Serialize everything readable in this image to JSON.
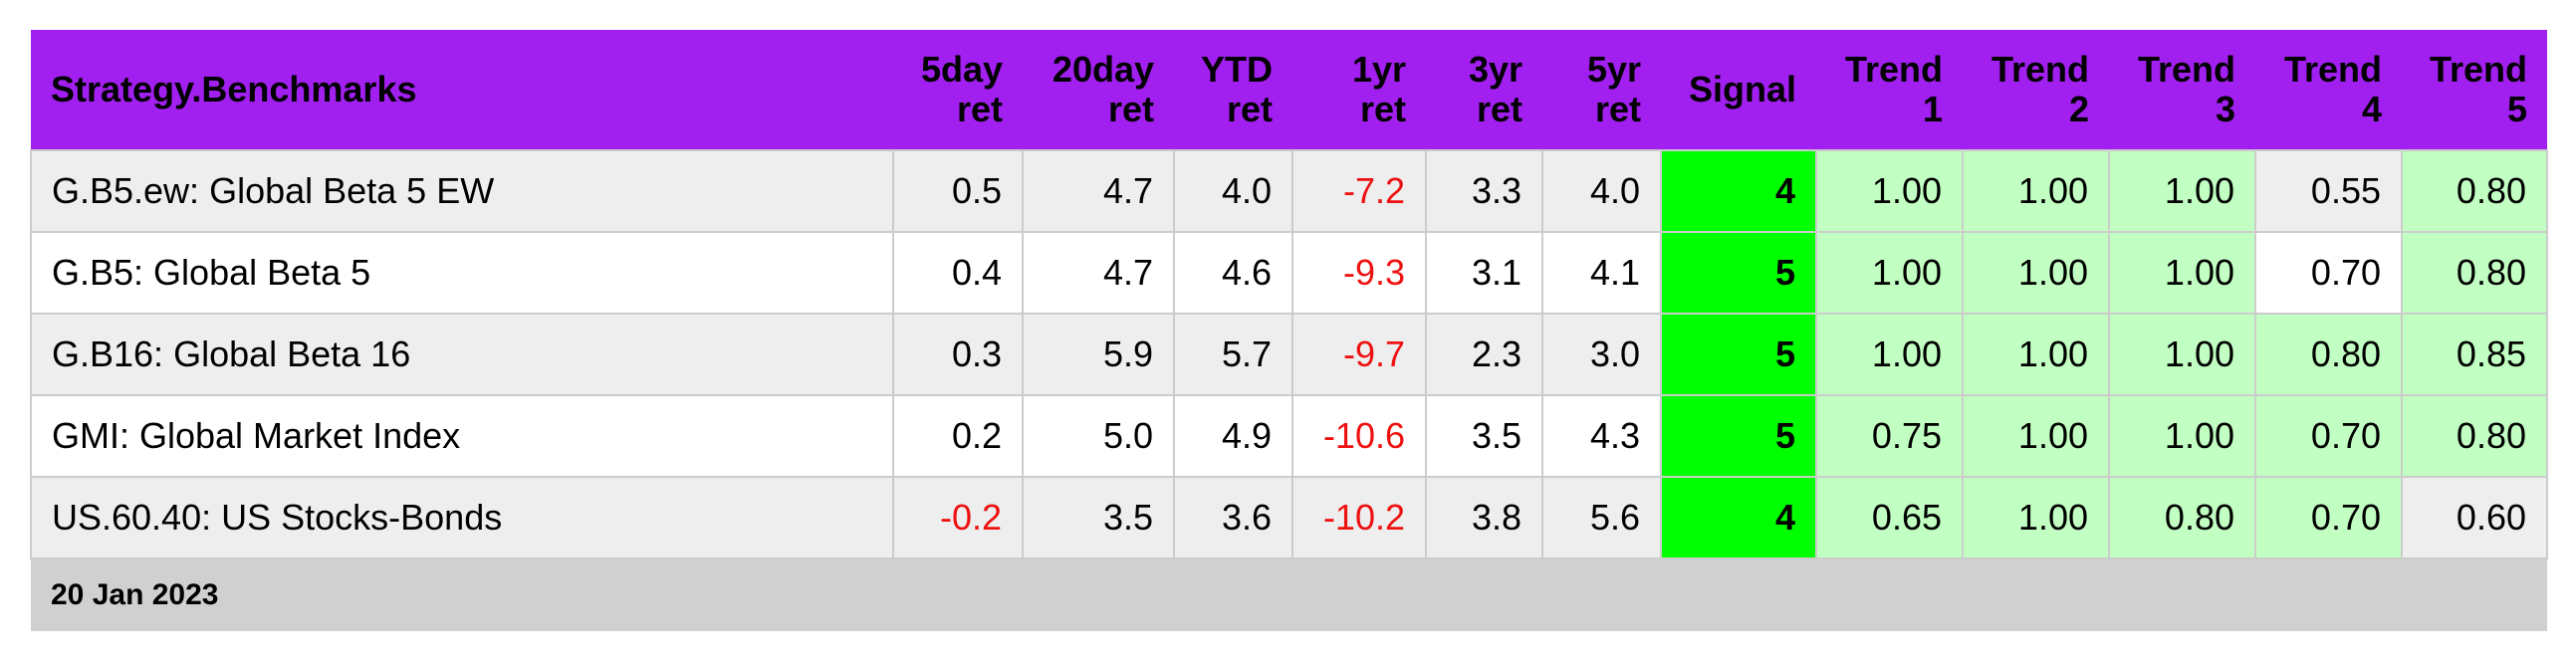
{
  "header": {
    "title": "Strategy.Benchmarks",
    "columns": [
      "5day\nret",
      "20day\nret",
      "YTD\nret",
      "1yr\nret",
      "3yr\nret",
      "5yr\nret",
      "Signal",
      "Trend\n1",
      "Trend\n2",
      "Trend\n3",
      "Trend\n4",
      "Trend\n5"
    ]
  },
  "table": {
    "rows": [
      [
        "G.B5.ew: Global Beta 5 EW",
        "0.5",
        "4.7",
        "4.0",
        "-7.2",
        "3.3",
        "4.0",
        "4",
        "1.00",
        "1.00",
        "1.00",
        "0.55",
        "0.80"
      ],
      [
        "G.B5: Global Beta 5",
        "0.4",
        "4.7",
        "4.6",
        "-9.3",
        "3.1",
        "4.1",
        "5",
        "1.00",
        "1.00",
        "1.00",
        "0.70",
        "0.80"
      ],
      [
        "G.B16: Global Beta 16",
        "0.3",
        "5.9",
        "5.7",
        "-9.7",
        "2.3",
        "3.0",
        "5",
        "1.00",
        "1.00",
        "1.00",
        "0.80",
        "0.85"
      ],
      [
        "GMI: Global Market Index",
        "0.2",
        "5.0",
        "4.9",
        "-10.6",
        "3.5",
        "4.3",
        "5",
        "0.75",
        "1.00",
        "1.00",
        "0.70",
        "0.80"
      ],
      [
        "US.60.40: US Stocks-Bonds",
        "-0.2",
        "3.5",
        "3.6",
        "-10.2",
        "3.8",
        "5.6",
        "4",
        "0.65",
        "1.00",
        "0.80",
        "0.70",
        "0.60"
      ]
    ]
  },
  "footer": {
    "date": "20 Jan 2023"
  }
}
